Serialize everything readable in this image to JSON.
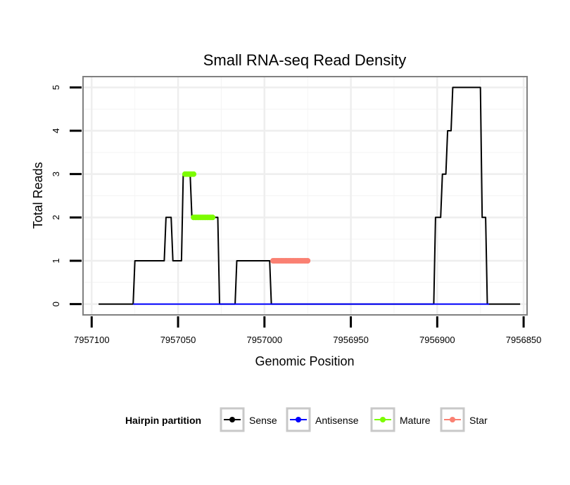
{
  "chart_data": {
    "type": "line",
    "title": "Small RNA-seq Read Density",
    "xlabel": "Genomic Position",
    "ylabel": "Total Reads",
    "x_reversed": true,
    "xlim": [
      7957105,
      7956848
    ],
    "ylim": [
      -0.25,
      5.25
    ],
    "x_ticks": [
      7957100,
      7957050,
      7957000,
      7956950,
      7956900,
      7956850
    ],
    "x_tick_labels": [
      "7957100",
      "7957050",
      "7957000",
      "7956950",
      "7956900",
      "7956850"
    ],
    "y_ticks": [
      0,
      1,
      2,
      3,
      4,
      5
    ],
    "y_tick_labels": [
      "0",
      "1",
      "2",
      "3",
      "4",
      "5"
    ],
    "grid": true,
    "legend": {
      "title": "Hairpin partition",
      "position": "bottom",
      "entries": [
        {
          "label": "Sense",
          "color": "#000000"
        },
        {
          "label": "Antisense",
          "color": "#0000ff"
        },
        {
          "label": "Mature",
          "color": "#7cfc00"
        },
        {
          "label": "Star",
          "color": "#fa8072"
        }
      ]
    },
    "series": [
      {
        "name": "Sense",
        "color": "#000000",
        "x": [
          7957096,
          7957076,
          7957075,
          7957058,
          7957057,
          7957054,
          7957053,
          7957048,
          7957047,
          7957043,
          7957042,
          7957036,
          7957035,
          7957027,
          7957026,
          7957017,
          7957016,
          7956997,
          7956996,
          7956976,
          7956975,
          7956902,
          7956901,
          7956898,
          7956897,
          7956895,
          7956894,
          7956892,
          7956891,
          7956888,
          7956887,
          7956875,
          7956874,
          7956872,
          7956871,
          7956852
        ],
        "y": [
          0,
          0,
          1,
          1,
          2,
          2,
          1,
          1,
          3,
          3,
          2,
          2,
          2,
          2,
          0,
          0,
          1,
          1,
          0,
          0,
          0,
          0,
          2,
          2,
          3,
          3,
          4,
          4,
          5,
          5,
          5,
          5,
          2,
          2,
          0,
          0
        ]
      },
      {
        "name": "Antisense",
        "color": "#0000ff",
        "x": [
          7957076,
          7956870
        ],
        "y": [
          0,
          0
        ]
      },
      {
        "name": "Mature",
        "color": "#7cfc00",
        "segments": [
          {
            "x": [
              7957046,
              7957041
            ],
            "y": [
              3,
              3
            ]
          },
          {
            "x": [
              7957041,
              7957030
            ],
            "y": [
              2,
              2
            ]
          }
        ]
      },
      {
        "name": "Star",
        "color": "#fa8072",
        "segments": [
          {
            "x": [
              7956995,
              7956975
            ],
            "y": [
              1,
              1
            ]
          }
        ]
      }
    ]
  }
}
